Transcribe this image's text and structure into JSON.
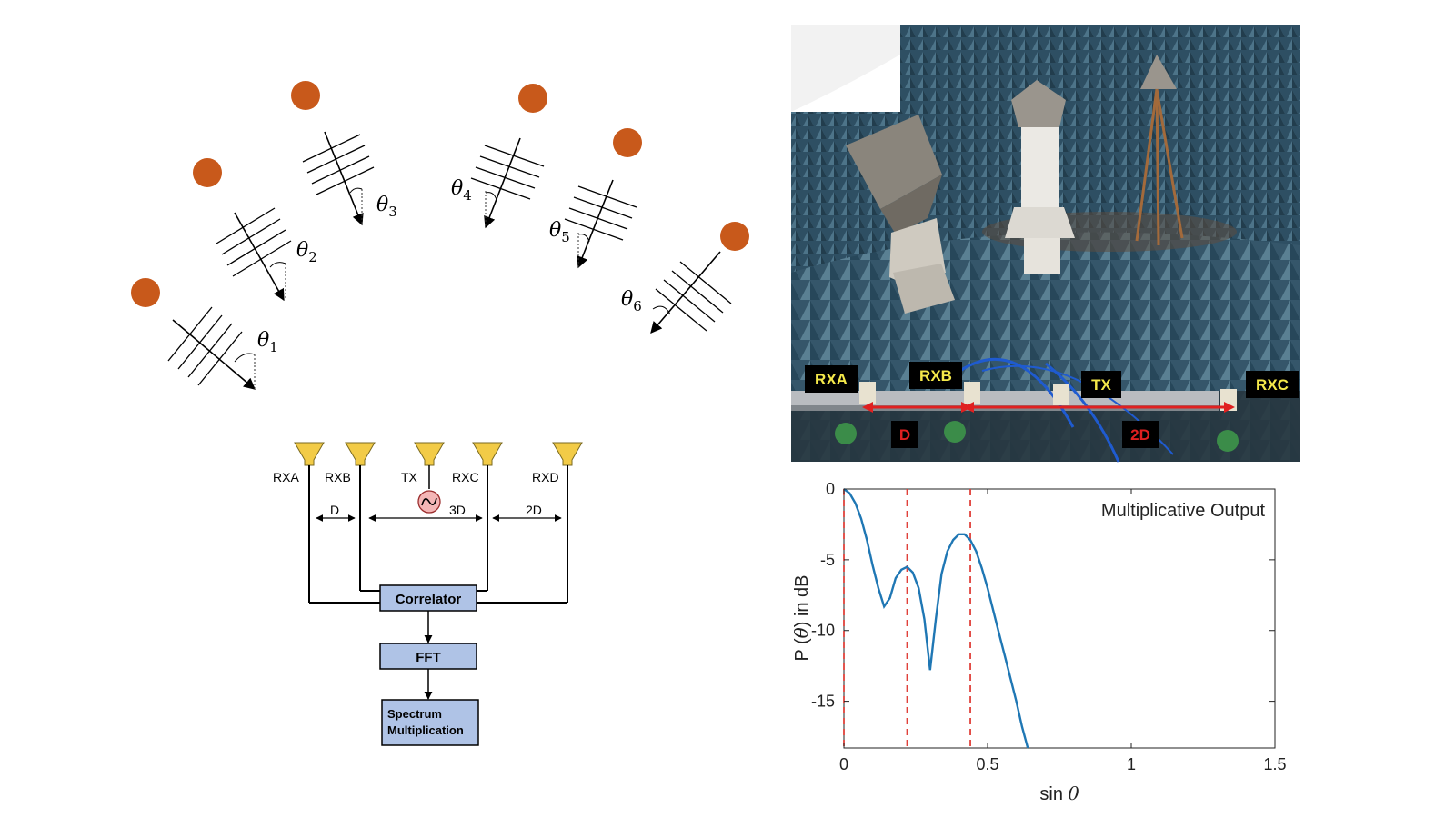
{
  "arrival_diagram": {
    "angle_labels": [
      {
        "symbol": "θ",
        "sub": "1"
      },
      {
        "symbol": "θ",
        "sub": "2"
      },
      {
        "symbol": "θ",
        "sub": "3"
      },
      {
        "symbol": "θ",
        "sub": "4"
      },
      {
        "symbol": "θ",
        "sub": "5"
      },
      {
        "symbol": "θ",
        "sub": "6"
      }
    ],
    "source_color": "#C8591B"
  },
  "block_diagram": {
    "antennas": [
      "RXA",
      "RXB",
      "TX",
      "RXC",
      "RXD"
    ],
    "spacings": [
      "D",
      "3D",
      "2D"
    ],
    "boxes": {
      "correlator": "Correlator",
      "fft": "FFT",
      "spectrum_line1": "Spectrum",
      "spectrum_line2": "Multiplication"
    },
    "antenna_color": "#F2CB47",
    "box_color": "#AFC3E6",
    "source_color": "#F4B6B6"
  },
  "photo": {
    "labels": {
      "rxa": "RXA",
      "rxb": "RXB",
      "tx": "TX",
      "rxc": "RXC",
      "d": "D",
      "twod": "2D"
    },
    "tag_yellow": "#F5E94A",
    "tag_red": "#E02020"
  },
  "chart_data": {
    "type": "line",
    "legend_text": "Multiplicative Output",
    "xlabel_prefix": "sin ",
    "xlabel_symbol": "θ",
    "ylabel_prefix": "P (",
    "ylabel_symbol": "θ",
    "ylabel_suffix": ") in dB",
    "xlim": [
      0,
      1.5
    ],
    "ylim": [
      -18.3,
      0
    ],
    "x_ticks": [
      "0",
      "0.5",
      "1",
      "1.5"
    ],
    "y_ticks": [
      "0",
      "-5",
      "-10",
      "-15"
    ],
    "series": [
      {
        "color": "#1F77B4",
        "x": [
          0,
          0.02,
          0.04,
          0.06,
          0.08,
          0.1,
          0.12,
          0.14,
          0.16,
          0.18,
          0.2,
          0.22,
          0.24,
          0.26,
          0.28,
          0.3,
          0.32,
          0.34,
          0.36,
          0.38,
          0.4,
          0.42,
          0.44,
          0.46,
          0.48,
          0.5,
          0.52,
          0.54,
          0.56,
          0.58,
          0.6,
          0.62,
          0.64
        ],
        "y": [
          0,
          -0.3,
          -1.0,
          -2.1,
          -3.6,
          -5.4,
          -7.0,
          -8.3,
          -7.7,
          -6.3,
          -5.7,
          -5.5,
          -5.9,
          -7.0,
          -9.2,
          -12.8,
          -9.2,
          -6.0,
          -4.4,
          -3.6,
          -3.2,
          -3.2,
          -3.6,
          -4.4,
          -5.6,
          -7.0,
          -8.6,
          -10.2,
          -11.8,
          -13.4,
          -15.0,
          -16.8,
          -18.3
        ]
      }
    ],
    "markers_x": [
      0,
      0.22,
      0.44
    ],
    "marker_color": "#E0413A"
  }
}
